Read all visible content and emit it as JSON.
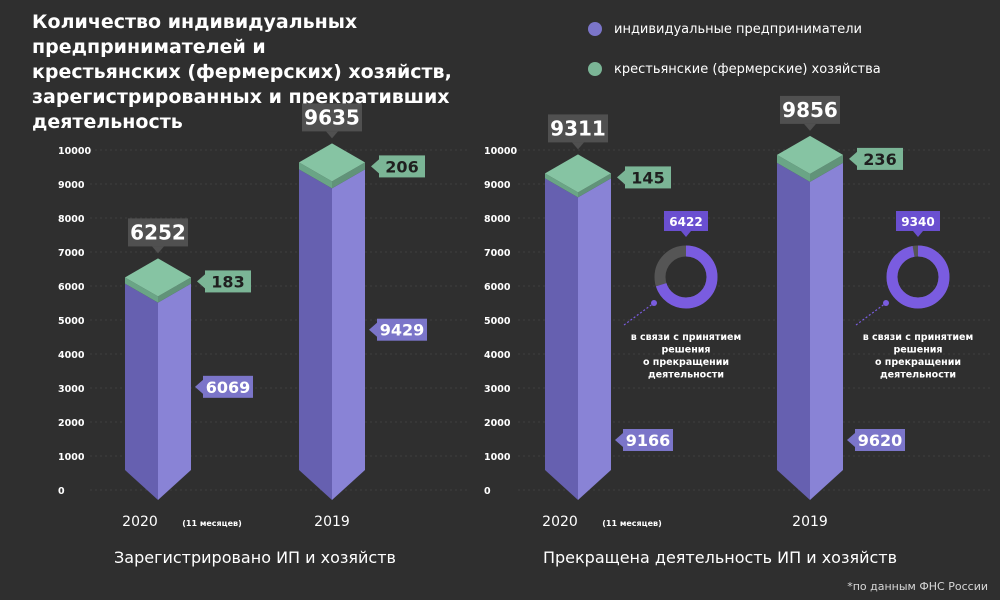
{
  "header": {
    "title_lines": [
      "Количество индивидуальных предпринимателей и",
      "крестьянских (фермерских) хозяйств,",
      "зарегистрированных и прекративших деятельность"
    ]
  },
  "legend": [
    {
      "label": "индивидуальные предприниматели",
      "color": "#7b75c9"
    },
    {
      "label": "крестьянские (фермерские) хозяйства",
      "color": "#7bb596"
    }
  ],
  "source_note": "*по данным ФНС России",
  "chart_data": [
    {
      "type": "bar",
      "stacked": true,
      "title": "Зарегистрировано ИП и хозяйств",
      "ylim": [
        0,
        10000
      ],
      "yticks": [
        0,
        1000,
        2000,
        3000,
        4000,
        5000,
        6000,
        7000,
        8000,
        9000,
        10000
      ],
      "categories": [
        {
          "main": "2020",
          "sub": "(11 месяцев)"
        },
        {
          "main": "2019",
          "sub": ""
        }
      ],
      "series": [
        {
          "name": "индивидуальные предприниматели",
          "values": [
            6069,
            9429
          ]
        },
        {
          "name": "крестьянские (фермерские) хозяйства",
          "values": [
            183,
            206
          ]
        }
      ],
      "totals": [
        6252,
        9635
      ]
    },
    {
      "type": "bar",
      "stacked": true,
      "title": "Прекращена деятельность ИП и хозяйств",
      "ylim": [
        0,
        10000
      ],
      "yticks": [
        0,
        1000,
        2000,
        3000,
        4000,
        5000,
        6000,
        7000,
        8000,
        9000,
        10000
      ],
      "categories": [
        {
          "main": "2020",
          "sub": "(11 месяцев)"
        },
        {
          "main": "2019",
          "sub": ""
        }
      ],
      "series": [
        {
          "name": "индивидуальные предприниматели",
          "values": [
            9166,
            9620
          ]
        },
        {
          "name": "крестьянские (фермерские) хозяйства",
          "values": [
            145,
            236
          ]
        }
      ],
      "totals": [
        9311,
        9856
      ],
      "donuts": [
        {
          "value": 6422,
          "of": 9166,
          "caption_lines": [
            "в связи с принятием",
            "решения",
            "о прекращении",
            "деятельности"
          ]
        },
        {
          "value": 9340,
          "of": 9620,
          "caption_lines": [
            "в связи с принятием",
            "решения",
            "о прекращении",
            "деятельности"
          ]
        }
      ]
    }
  ]
}
